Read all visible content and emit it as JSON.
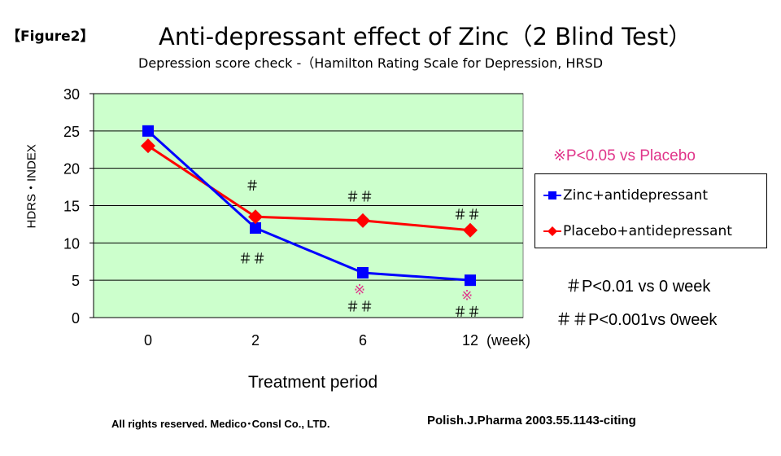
{
  "figure_label": "【Figure2】",
  "title": "Anti-depressant effect of Zinc（2 Blind Test）",
  "subtitle": "Depression score check -（Hamilton Rating Scale for Depression, HRSD",
  "significance": {
    "p05": "※P<0.05 vs Placebo",
    "p01": "＃P<0.01 vs 0 week",
    "p001": "＃＃P<0.001vs 0week"
  },
  "footer": {
    "left": "All rights reserved.  Medico･Consl Co., LTD.",
    "right": "Polish.J.Pharma   2003.55.1143-citing"
  },
  "colors": {
    "plot_bg": "#ccffcc",
    "zinc": "#0000ff",
    "placebo": "#ff0000",
    "significance_mark": "#e0358a"
  },
  "chart_data": {
    "type": "line",
    "categories": [
      "0",
      "2",
      "6",
      "12"
    ],
    "x_unit_label": "(week)",
    "xlabel": "Treatment period",
    "ylabel": "HDRS・INDEX",
    "ylim": [
      0,
      30
    ],
    "yticks": [
      0,
      5,
      10,
      15,
      20,
      25,
      30
    ],
    "grid": true,
    "legend_position": "right",
    "series": [
      {
        "name": "Zinc+antidepressant",
        "values": [
          25,
          12,
          6,
          5
        ],
        "marker": "square",
        "color": "#0000ff"
      },
      {
        "name": "Placebo+antidepressant",
        "values": [
          23,
          13.5,
          13,
          11.7
        ],
        "marker": "diamond",
        "color": "#ff0000"
      }
    ],
    "annotations": [
      {
        "category": "2",
        "y": 17.8,
        "text": "＃",
        "color": "#000000"
      },
      {
        "category": "6",
        "y": 16.3,
        "text": "＃＃",
        "color": "#000000"
      },
      {
        "category": "12",
        "y": 13.9,
        "text": "＃＃",
        "color": "#000000"
      },
      {
        "category": "2",
        "y": 8.0,
        "text": "＃＃",
        "color": "#000000"
      },
      {
        "category": "6",
        "y": 3.9,
        "text": "※",
        "color": "#e0358a"
      },
      {
        "category": "6",
        "y": 1.6,
        "text": "＃＃",
        "color": "#000000"
      },
      {
        "category": "12",
        "y": 3.1,
        "text": "※",
        "color": "#e0358a"
      },
      {
        "category": "12",
        "y": 0.9,
        "text": "＃＃",
        "color": "#000000"
      }
    ]
  }
}
